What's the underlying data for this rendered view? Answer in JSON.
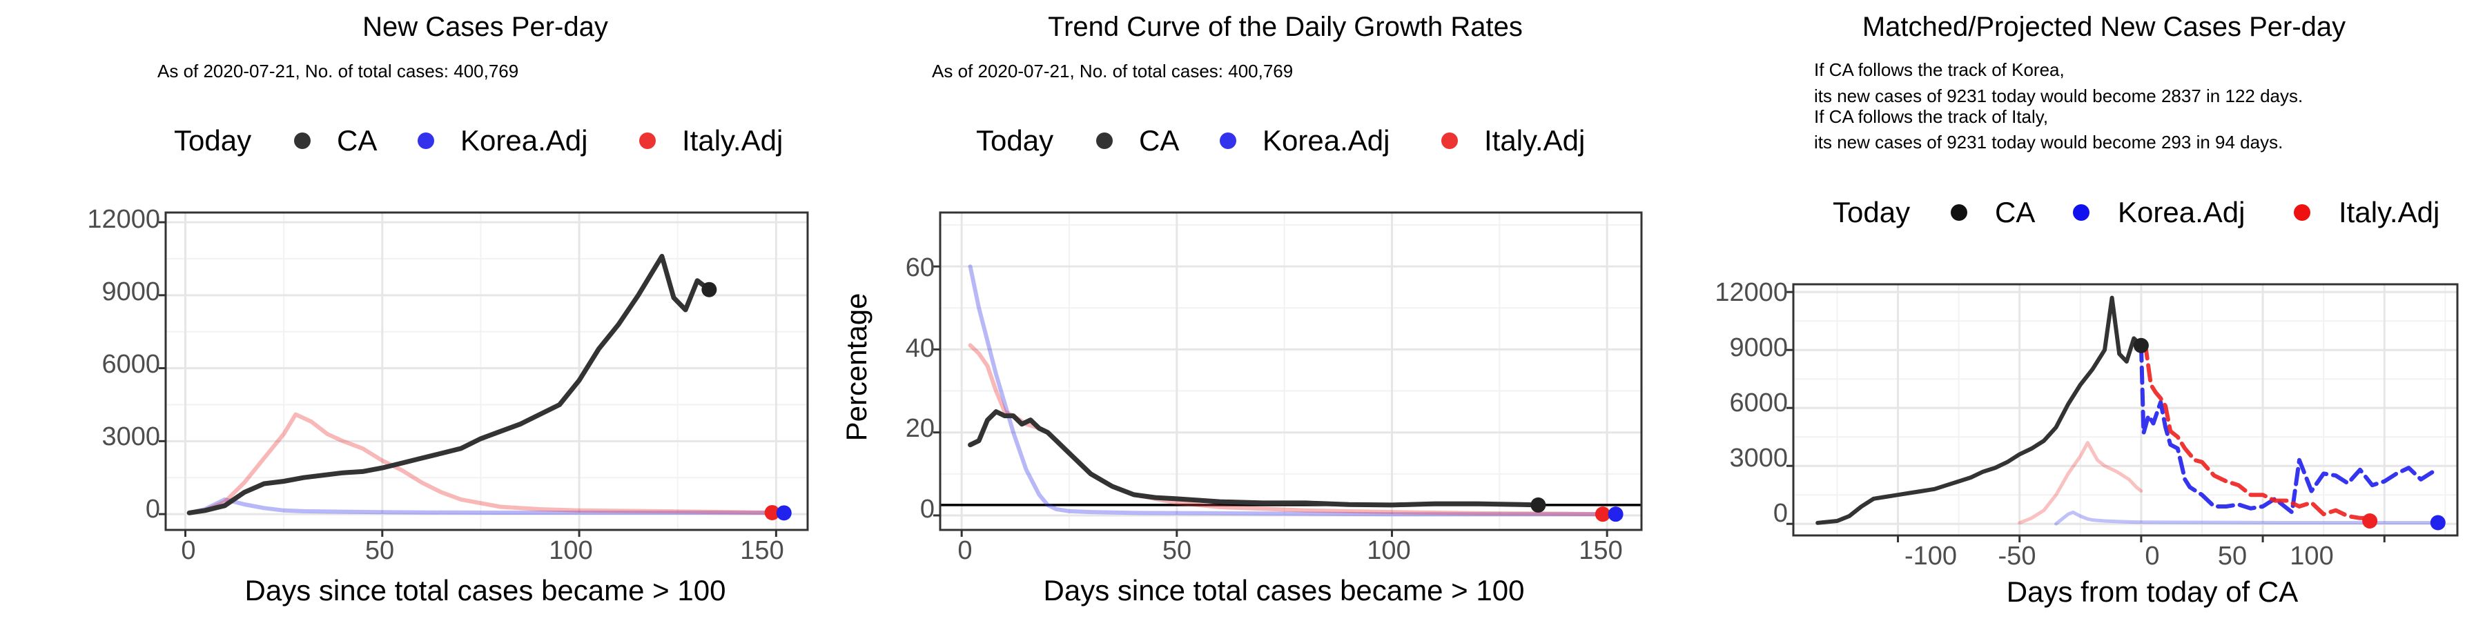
{
  "chart_data": [
    {
      "type": "line",
      "title": "New Cases Per-day",
      "subtitle": [
        "As of 2020-07-21, No. of total cases: 400,769"
      ],
      "xlabel": "Days since total cases became > 100",
      "ylabel": "",
      "xlim": [
        -5,
        158
      ],
      "ylim": [
        -650,
        12400
      ],
      "xticks": [
        0,
        50,
        100,
        150
      ],
      "yticks": [
        0,
        3000,
        6000,
        9000,
        12000
      ],
      "legend": {
        "title": "Today",
        "position": "top",
        "entries": [
          "CA",
          "Korea.Adj",
          "Italy.Adj"
        ]
      },
      "colors": {
        "CA": "#333333",
        "Korea.Adj": "#3333ee",
        "Italy.Adj": "#ee3333"
      },
      "grid": true,
      "series": [
        {
          "name": "CA",
          "x": [
            1,
            5,
            10,
            15,
            20,
            25,
            30,
            35,
            40,
            45,
            50,
            55,
            60,
            65,
            70,
            75,
            80,
            85,
            90,
            95,
            100,
            105,
            110,
            115,
            118,
            121,
            124,
            127,
            130,
            133
          ],
          "y": [
            50,
            150,
            350,
            900,
            1250,
            1350,
            1500,
            1600,
            1700,
            1750,
            1900,
            2100,
            2300,
            2500,
            2700,
            3100,
            3400,
            3700,
            4100,
            4500,
            5500,
            6800,
            7800,
            9000,
            9800,
            10600,
            8900,
            8400,
            9600,
            9231
          ]
        },
        {
          "name": "Korea.Adj",
          "x": [
            1,
            5,
            10,
            15,
            20,
            25,
            30,
            40,
            50,
            60,
            80,
            100,
            120,
            140,
            152
          ],
          "y": [
            50,
            200,
            600,
            400,
            250,
            150,
            120,
            100,
            80,
            70,
            60,
            60,
            60,
            55,
            50
          ]
        },
        {
          "name": "Italy.Adj",
          "x": [
            1,
            5,
            10,
            15,
            20,
            25,
            28,
            32,
            36,
            40,
            45,
            50,
            55,
            60,
            65,
            70,
            80,
            90,
            100,
            120,
            140,
            149
          ],
          "y": [
            50,
            150,
            500,
            1300,
            2300,
            3300,
            4100,
            3800,
            3300,
            3000,
            2700,
            2200,
            1800,
            1300,
            900,
            600,
            300,
            200,
            150,
            120,
            80,
            60
          ]
        }
      ],
      "today_points": [
        {
          "name": "CA",
          "x": 133,
          "y": 9231
        },
        {
          "name": "Italy.Adj",
          "x": 149,
          "y": 60
        },
        {
          "name": "Korea.Adj",
          "x": 152,
          "y": 50
        }
      ]
    },
    {
      "type": "line",
      "title": "Trend Curve of the Daily Growth Rates",
      "subtitle": [
        "As of 2020-07-21, No. of total cases: 400,769"
      ],
      "xlabel": "Days since total cases became > 100",
      "ylabel": "Percentage",
      "xlim": [
        -5,
        158
      ],
      "ylim": [
        -3.5,
        73
      ],
      "xticks": [
        0,
        50,
        100,
        150
      ],
      "yticks": [
        0,
        20,
        40,
        60
      ],
      "hline": 2.5,
      "legend": {
        "title": "Today",
        "position": "top",
        "entries": [
          "CA",
          "Korea.Adj",
          "Italy.Adj"
        ]
      },
      "colors": {
        "CA": "#333333",
        "Korea.Adj": "#3333ee",
        "Italy.Adj": "#ee3333"
      },
      "grid": true,
      "series": [
        {
          "name": "CA",
          "x": [
            2,
            4,
            6,
            8,
            10,
            12,
            14,
            16,
            18,
            20,
            22,
            25,
            30,
            35,
            40,
            45,
            50,
            60,
            70,
            80,
            90,
            100,
            110,
            120,
            130,
            134
          ],
          "y": [
            17,
            18,
            23,
            25,
            24,
            24,
            22,
            23,
            21,
            20,
            18,
            15,
            10,
            7,
            5,
            4.3,
            4,
            3.3,
            3,
            3,
            2.6,
            2.5,
            2.8,
            2.8,
            2.6,
            2.5
          ]
        },
        {
          "name": "Korea.Adj",
          "x": [
            2,
            4,
            6,
            8,
            10,
            12,
            15,
            18,
            20,
            22,
            25,
            30,
            40,
            60,
            80,
            100,
            120,
            140,
            152
          ],
          "y": [
            60,
            50,
            42,
            34,
            27,
            20,
            11,
            5,
            2.5,
            1.5,
            1,
            0.8,
            0.6,
            0.5,
            0.4,
            0.3,
            0.3,
            0.3,
            0.3
          ]
        },
        {
          "name": "Italy.Adj",
          "x": [
            2,
            4,
            6,
            8,
            10,
            12,
            15,
            18,
            20,
            22,
            25,
            30,
            35,
            40,
            45,
            50,
            60,
            70,
            80,
            100,
            120,
            140,
            149
          ],
          "y": [
            41,
            39,
            36,
            30,
            25,
            24,
            22,
            21,
            20,
            18,
            15,
            10,
            7,
            5,
            4,
            3,
            2,
            1.6,
            1.2,
            0.8,
            0.5,
            0.4,
            0.3
          ]
        }
      ],
      "today_points": [
        {
          "name": "CA",
          "x": 134,
          "y": 2.5
        },
        {
          "name": "Italy.Adj",
          "x": 149,
          "y": 0.3
        },
        {
          "name": "Korea.Adj",
          "x": 152,
          "y": 0.3
        }
      ]
    },
    {
      "type": "line",
      "title": "Matched/Projected New Cases Per-day",
      "subtitle": [
        "If CA follows the track of Korea,",
        "its new cases of 9231 today would become 2837 in 122 days.",
        "If CA follows the track of Italy,",
        "its new cases of 9231 today would become 293 in 94 days."
      ],
      "xlabel": "Days from today of CA",
      "ylabel": "",
      "xlim": [
        -143,
        130
      ],
      "ylim": [
        -600,
        12400
      ],
      "xticks": [
        -100,
        -50,
        0,
        50,
        100
      ],
      "yticks": [
        0,
        3000,
        6000,
        9000,
        12000
      ],
      "legend": {
        "title": "Today",
        "position": "top",
        "entries": [
          "CA",
          "Korea.Adj",
          "Italy.Adj"
        ]
      },
      "colors": {
        "CA": "#333333",
        "Korea.Adj": "#3333ee",
        "Italy.Adj": "#ee3333"
      },
      "grid": true,
      "series": [
        {
          "name": "CA",
          "x": [
            -133,
            -125,
            -120,
            -115,
            -110,
            -105,
            -100,
            -95,
            -90,
            -85,
            -80,
            -75,
            -70,
            -65,
            -60,
            -55,
            -50,
            -45,
            -40,
            -35,
            -30,
            -25,
            -20,
            -15,
            -12,
            -9,
            -6,
            -3,
            0
          ],
          "y": [
            50,
            150,
            400,
            900,
            1300,
            1400,
            1500,
            1600,
            1700,
            1800,
            2000,
            2200,
            2400,
            2700,
            2900,
            3200,
            3600,
            3900,
            4300,
            5000,
            6200,
            7200,
            8000,
            9000,
            11700,
            8800,
            8400,
            9600,
            9231
          ]
        },
        {
          "name": "Korea.Adj",
          "x": [
            0,
            1,
            3,
            5,
            8,
            10,
            12,
            15,
            18,
            20,
            25,
            30,
            35,
            40,
            45,
            50,
            55,
            60,
            62,
            65,
            70,
            75,
            80,
            85,
            90,
            95,
            100,
            105,
            110,
            115,
            120,
            122
          ],
          "y": [
            9231,
            4700,
            5600,
            5200,
            6300,
            5000,
            4100,
            3900,
            2300,
            1900,
            1500,
            900,
            900,
            1000,
            800,
            900,
            1300,
            800,
            600,
            3300,
            1700,
            2600,
            2500,
            2100,
            2800,
            2000,
            2200,
            2600,
            2900,
            2300,
            2700,
            2837
          ]
        },
        {
          "name": "Italy.Adj",
          "x": [
            0,
            2,
            4,
            6,
            8,
            10,
            12,
            15,
            18,
            20,
            22,
            25,
            30,
            35,
            40,
            45,
            50,
            55,
            60,
            65,
            70,
            75,
            80,
            85,
            90,
            94
          ],
          "y": [
            9231,
            9000,
            7200,
            6800,
            6500,
            6100,
            4800,
            4500,
            3900,
            3600,
            3300,
            3200,
            2500,
            2200,
            2000,
            1500,
            1500,
            1200,
            1200,
            900,
            1100,
            500,
            700,
            400,
            300,
            293
          ]
        },
        {
          "name": "Korea.Adj (matched)",
          "x": [
            -35,
            -33,
            -30,
            -28,
            -25,
            -22,
            -20,
            -15,
            -10,
            -5,
            0,
            20,
            40,
            60,
            80,
            100,
            122
          ],
          "y": [
            0,
            200,
            500,
            600,
            400,
            250,
            200,
            150,
            120,
            100,
            90,
            80,
            70,
            60,
            60,
            60,
            60
          ]
        },
        {
          "name": "Italy.Adj (matched)",
          "x": [
            -50,
            -45,
            -40,
            -35,
            -30,
            -25,
            -22,
            -18,
            -15,
            -10,
            -5,
            -2,
            0
          ],
          "y": [
            50,
            300,
            700,
            1500,
            2600,
            3500,
            4200,
            3300,
            3000,
            2700,
            2300,
            1900,
            1700
          ]
        }
      ],
      "today_points": [
        {
          "name": "CA",
          "x": 0,
          "y": 9231
        },
        {
          "name": "Italy.Adj",
          "x": 94,
          "y": 150
        },
        {
          "name": "Korea.Adj",
          "x": 122,
          "y": 60
        }
      ]
    }
  ]
}
